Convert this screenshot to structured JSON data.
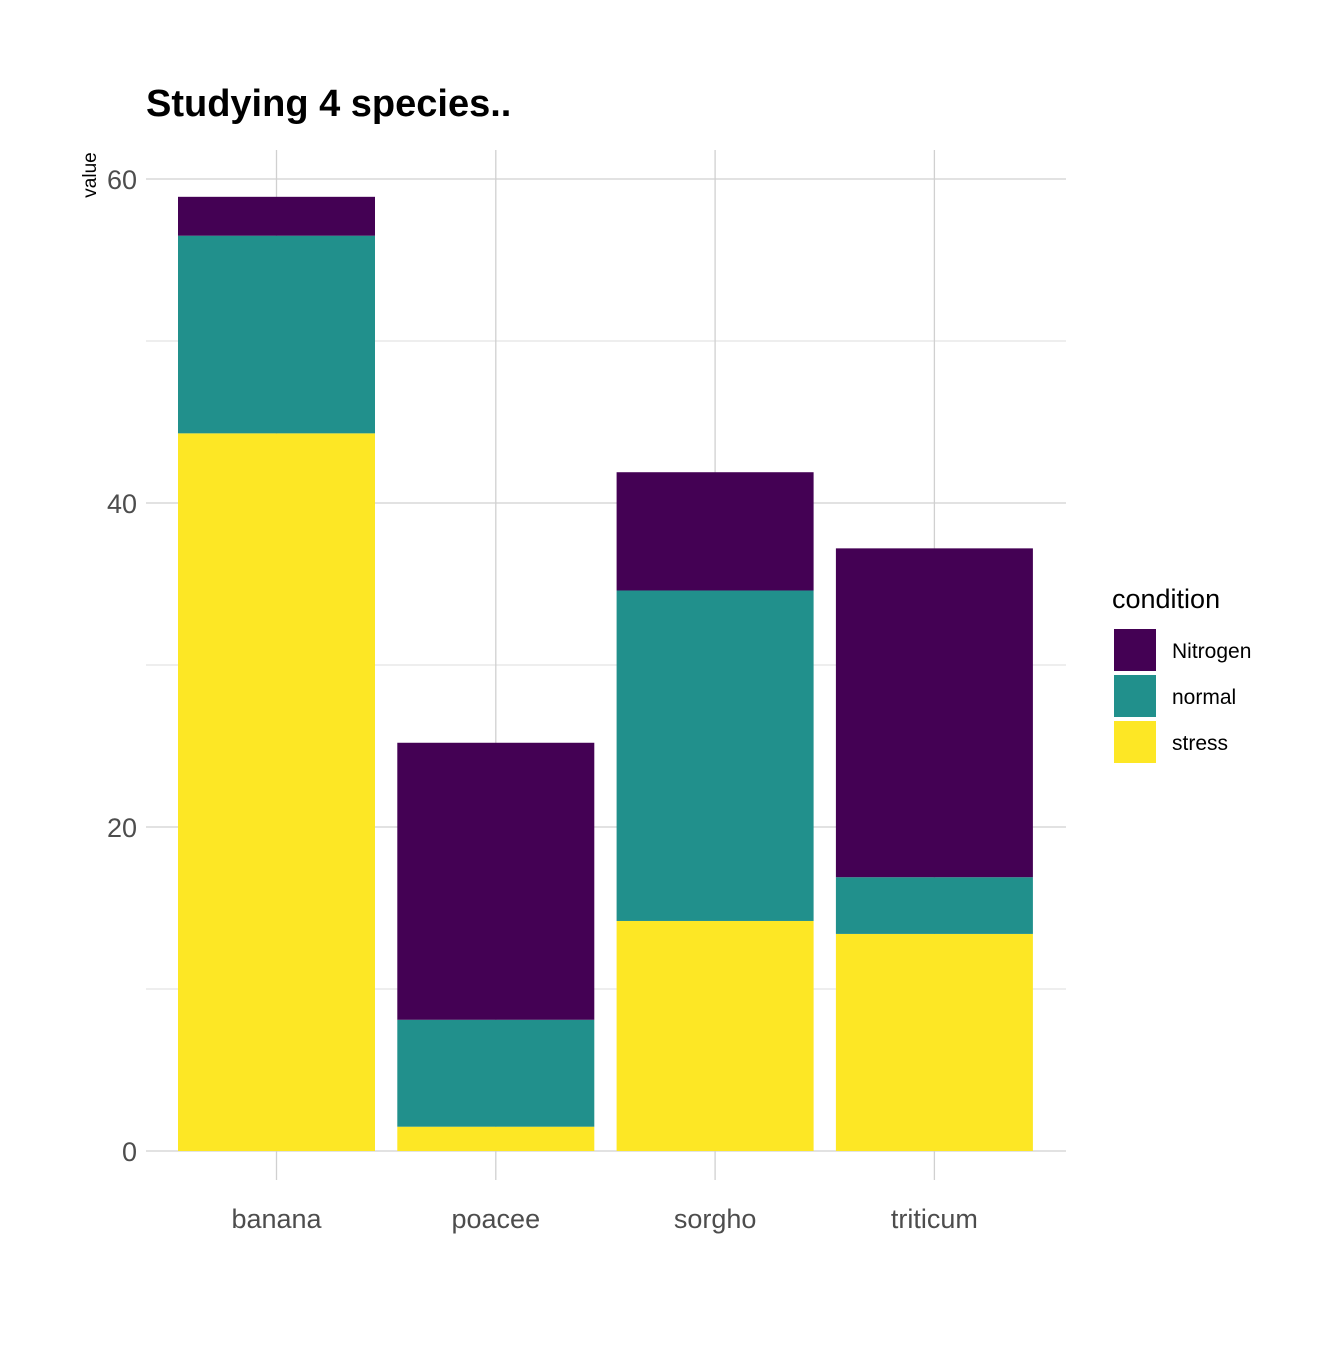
{
  "chart_data": {
    "type": "bar",
    "stacked": true,
    "title": "Studying 4 species..",
    "xlabel": "",
    "ylabel": "value",
    "ylim": [
      0,
      60
    ],
    "y_ticks": [
      0,
      20,
      40,
      60
    ],
    "y_tick_labels": [
      "0",
      "20",
      "40",
      "60"
    ],
    "categories": [
      "banana",
      "poacee",
      "sorgho",
      "triticum"
    ],
    "series": [
      {
        "name": "stress",
        "color": "#FDE725",
        "values": [
          44.3,
          1.5,
          14.2,
          13.4
        ]
      },
      {
        "name": "normal",
        "color": "#21908C",
        "values": [
          12.2,
          6.6,
          20.4,
          3.5
        ]
      },
      {
        "name": "Nitrogen",
        "color": "#440154",
        "values": [
          2.4,
          17.1,
          7.3,
          20.3
        ]
      }
    ],
    "legend": {
      "title": "condition",
      "position": "right",
      "items": [
        "Nitrogen",
        "normal",
        "stress"
      ]
    }
  }
}
